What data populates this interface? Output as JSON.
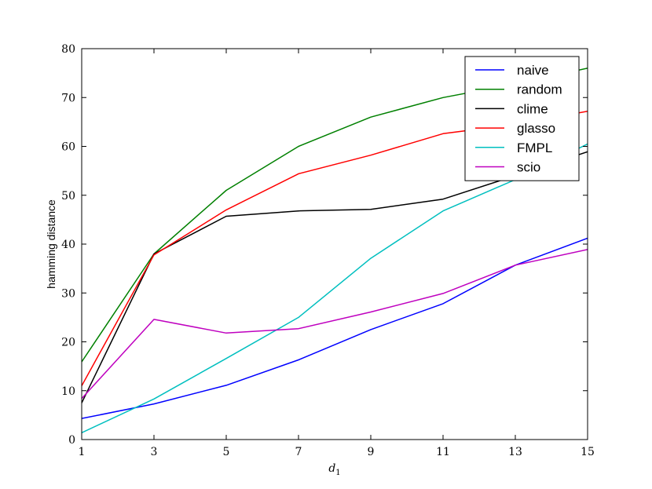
{
  "chart_data": {
    "type": "line",
    "title": "",
    "xlabel": "d",
    "xlabel_subscript": "1",
    "ylabel": "hamming distance",
    "xlim": [
      1,
      15
    ],
    "ylim": [
      0,
      80
    ],
    "xticks": [
      "1",
      "3",
      "5",
      "7",
      "9",
      "11",
      "13",
      "15"
    ],
    "yticks": [
      "0",
      "10",
      "20",
      "30",
      "40",
      "50",
      "60",
      "70",
      "80"
    ],
    "grid": false,
    "legend_position": "top-right",
    "x": [
      1,
      3,
      5,
      7,
      9,
      11,
      13,
      15
    ],
    "series": [
      {
        "name": "naive",
        "color": "#0000ff",
        "values": [
          4.3,
          7.3,
          11.1,
          16.3,
          22.5,
          27.8,
          35.7,
          41.2
        ]
      },
      {
        "name": "random",
        "color": "#008000",
        "values": [
          15.9,
          38.0,
          51.0,
          60.0,
          66.0,
          70.0,
          72.8,
          76.0
        ]
      },
      {
        "name": "clime",
        "color": "#000000",
        "values": [
          7.5,
          38.0,
          45.7,
          46.8,
          47.1,
          49.2,
          54.0,
          58.9
        ]
      },
      {
        "name": "glasso",
        "color": "#ff0000",
        "values": [
          11.0,
          37.8,
          47.0,
          54.4,
          58.2,
          62.6,
          64.5,
          67.2
        ]
      },
      {
        "name": "FMPL",
        "color": "#00bfbf",
        "values": [
          1.4,
          8.3,
          16.6,
          25.0,
          37.1,
          46.8,
          53.2,
          60.5
        ]
      },
      {
        "name": "scio",
        "color": "#bf00bf",
        "values": [
          8.4,
          24.6,
          21.8,
          22.7,
          26.1,
          29.9,
          35.7,
          38.9
        ]
      }
    ]
  }
}
